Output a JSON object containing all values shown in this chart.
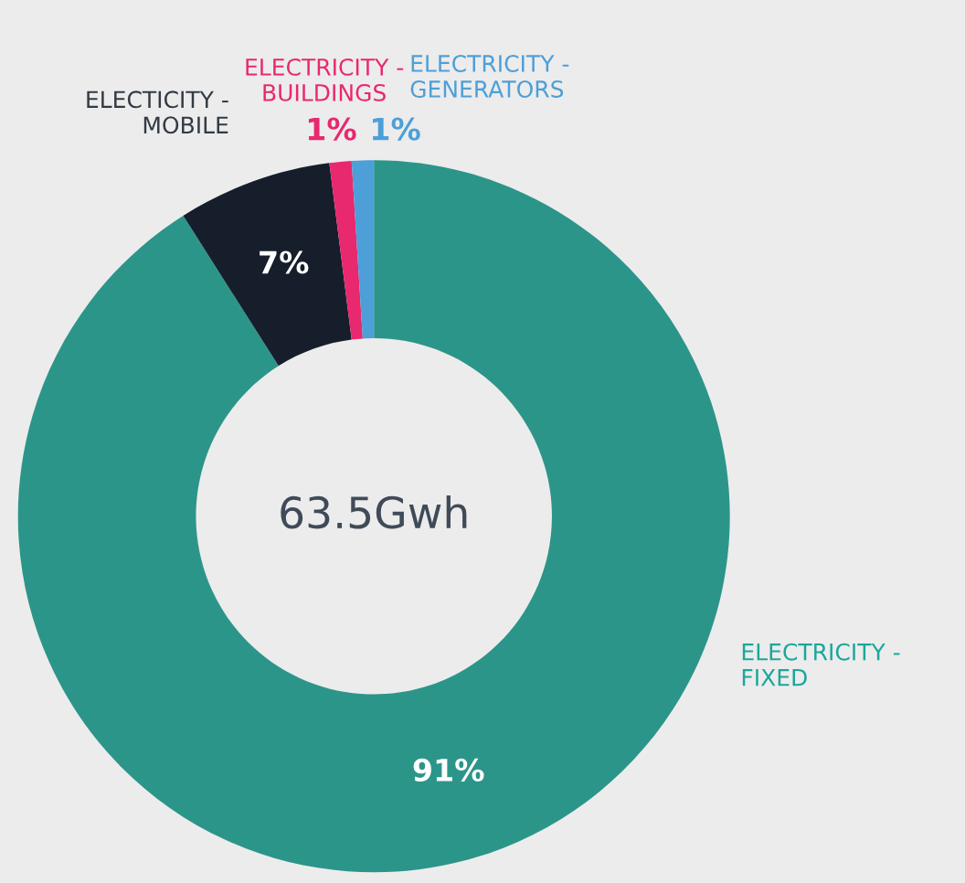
{
  "chart_data": {
    "type": "donut",
    "categories": [
      "ELECTRICITY -\nFIXED",
      "ELECTICITY -\nMOBILE",
      "ELECTRICITY -\nBUILDINGS",
      "ELECTRICITY -\nGENERATORS"
    ],
    "values": [
      91,
      7,
      1,
      1
    ],
    "colors": [
      "#2c958a",
      "#161e2c",
      "#e8286f",
      "#4d9fd8"
    ],
    "value_labels": [
      "91%",
      "7%",
      "1%",
      "1%"
    ],
    "annotations": [
      "63.5Gwh"
    ],
    "legend": false
  }
}
